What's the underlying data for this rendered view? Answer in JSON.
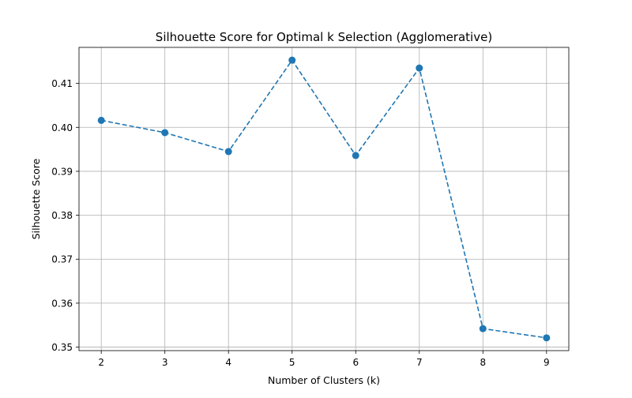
{
  "chart_data": {
    "type": "line",
    "title": "Silhouette Score for Optimal k Selection (Agglomerative)",
    "xlabel": "Number of Clusters (k)",
    "ylabel": "Silhouette Score",
    "x": [
      2,
      3,
      4,
      5,
      6,
      7,
      8,
      9
    ],
    "series": [
      {
        "values": [
          0.4016,
          0.3988,
          0.3945,
          0.4153,
          0.3936,
          0.4135,
          0.3542,
          0.3521
        ],
        "color": "#1f77b4",
        "line_style": "dashed",
        "marker": "circle"
      }
    ],
    "xlim": [
      1.65,
      9.35
    ],
    "ylim": [
      0.3492,
      0.4182
    ],
    "x_ticks": [
      "2",
      "3",
      "4",
      "5",
      "6",
      "7",
      "8",
      "9"
    ],
    "y_ticks": [
      "0.35",
      "0.36",
      "0.37",
      "0.38",
      "0.39",
      "0.40",
      "0.41"
    ],
    "grid": true
  }
}
